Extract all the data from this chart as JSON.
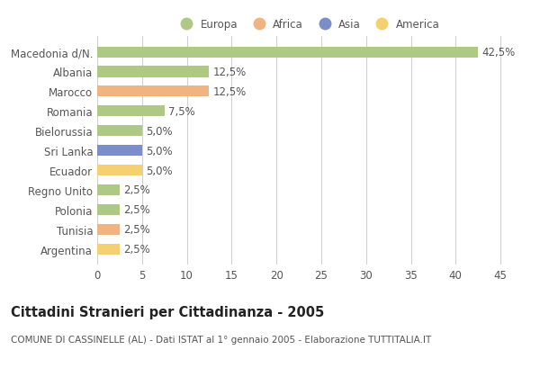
{
  "categories": [
    "Macedonia d/N.",
    "Albania",
    "Marocco",
    "Romania",
    "Bielorussia",
    "Sri Lanka",
    "Ecuador",
    "Regno Unito",
    "Polonia",
    "Tunisia",
    "Argentina"
  ],
  "values": [
    42.5,
    12.5,
    12.5,
    7.5,
    5.0,
    5.0,
    5.0,
    2.5,
    2.5,
    2.5,
    2.5
  ],
  "labels": [
    "42,5%",
    "12,5%",
    "12,5%",
    "7,5%",
    "5,0%",
    "5,0%",
    "5,0%",
    "2,5%",
    "2,5%",
    "2,5%",
    "2,5%"
  ],
  "bar_colors": [
    "#aec984",
    "#aec984",
    "#f0b483",
    "#aec984",
    "#aec984",
    "#7b8ec8",
    "#f5d070",
    "#aec984",
    "#aec984",
    "#f0b483",
    "#f5d070"
  ],
  "legend_labels": [
    "Europa",
    "Africa",
    "Asia",
    "America"
  ],
  "legend_colors": [
    "#aec984",
    "#f0b483",
    "#7b8ec8",
    "#f5d070"
  ],
  "title": "Cittadini Stranieri per Cittadinanza - 2005",
  "subtitle": "COMUNE DI CASSINELLE (AL) - Dati ISTAT al 1° gennaio 2005 - Elaborazione TUTTITALIA.IT",
  "xlim": [
    0,
    47
  ],
  "xticks": [
    0,
    5,
    10,
    15,
    20,
    25,
    30,
    35,
    40,
    45
  ],
  "background_color": "#ffffff",
  "grid_color": "#d0d0d0",
  "bar_height": 0.55,
  "label_fontsize": 8.5,
  "tick_fontsize": 8.5,
  "title_fontsize": 10.5,
  "subtitle_fontsize": 7.5,
  "text_color": "#555555",
  "title_color": "#222222"
}
